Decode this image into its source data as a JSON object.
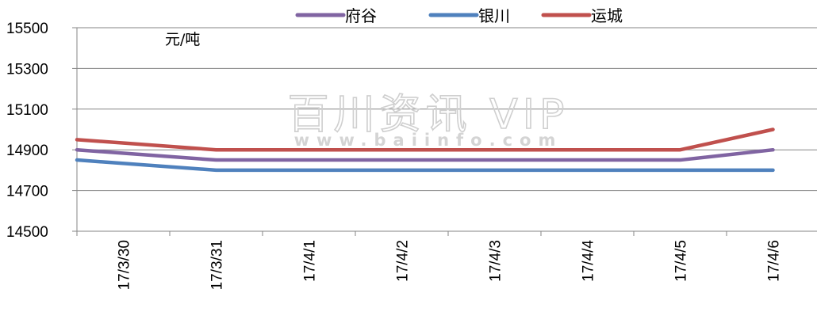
{
  "chart_data": {
    "type": "line",
    "unit_label": "元/吨",
    "categories": [
      "17/3/30",
      "17/3/31",
      "17/4/1",
      "17/4/2",
      "17/4/3",
      "17/4/4",
      "17/4/5",
      "17/4/6"
    ],
    "ylim": [
      14500,
      15500
    ],
    "yticks": [
      14500,
      14700,
      14900,
      15100,
      15300,
      15500
    ],
    "grid": true,
    "legend_position": "top",
    "series": [
      {
        "name": "府谷",
        "color": "#8064A2",
        "values": [
          14900,
          14850,
          14850,
          14850,
          14850,
          14850,
          14850,
          14900
        ]
      },
      {
        "name": "银川",
        "color": "#4F81BD",
        "values": [
          14850,
          14800,
          14800,
          14800,
          14800,
          14800,
          14800,
          14800
        ]
      },
      {
        "name": "运城",
        "color": "#C0504D",
        "values": [
          14950,
          14900,
          14900,
          14900,
          14900,
          14900,
          14900,
          15000
        ]
      }
    ]
  },
  "watermark": {
    "title": "百川资讯 VIP",
    "url": "www.baiinfo.com"
  }
}
